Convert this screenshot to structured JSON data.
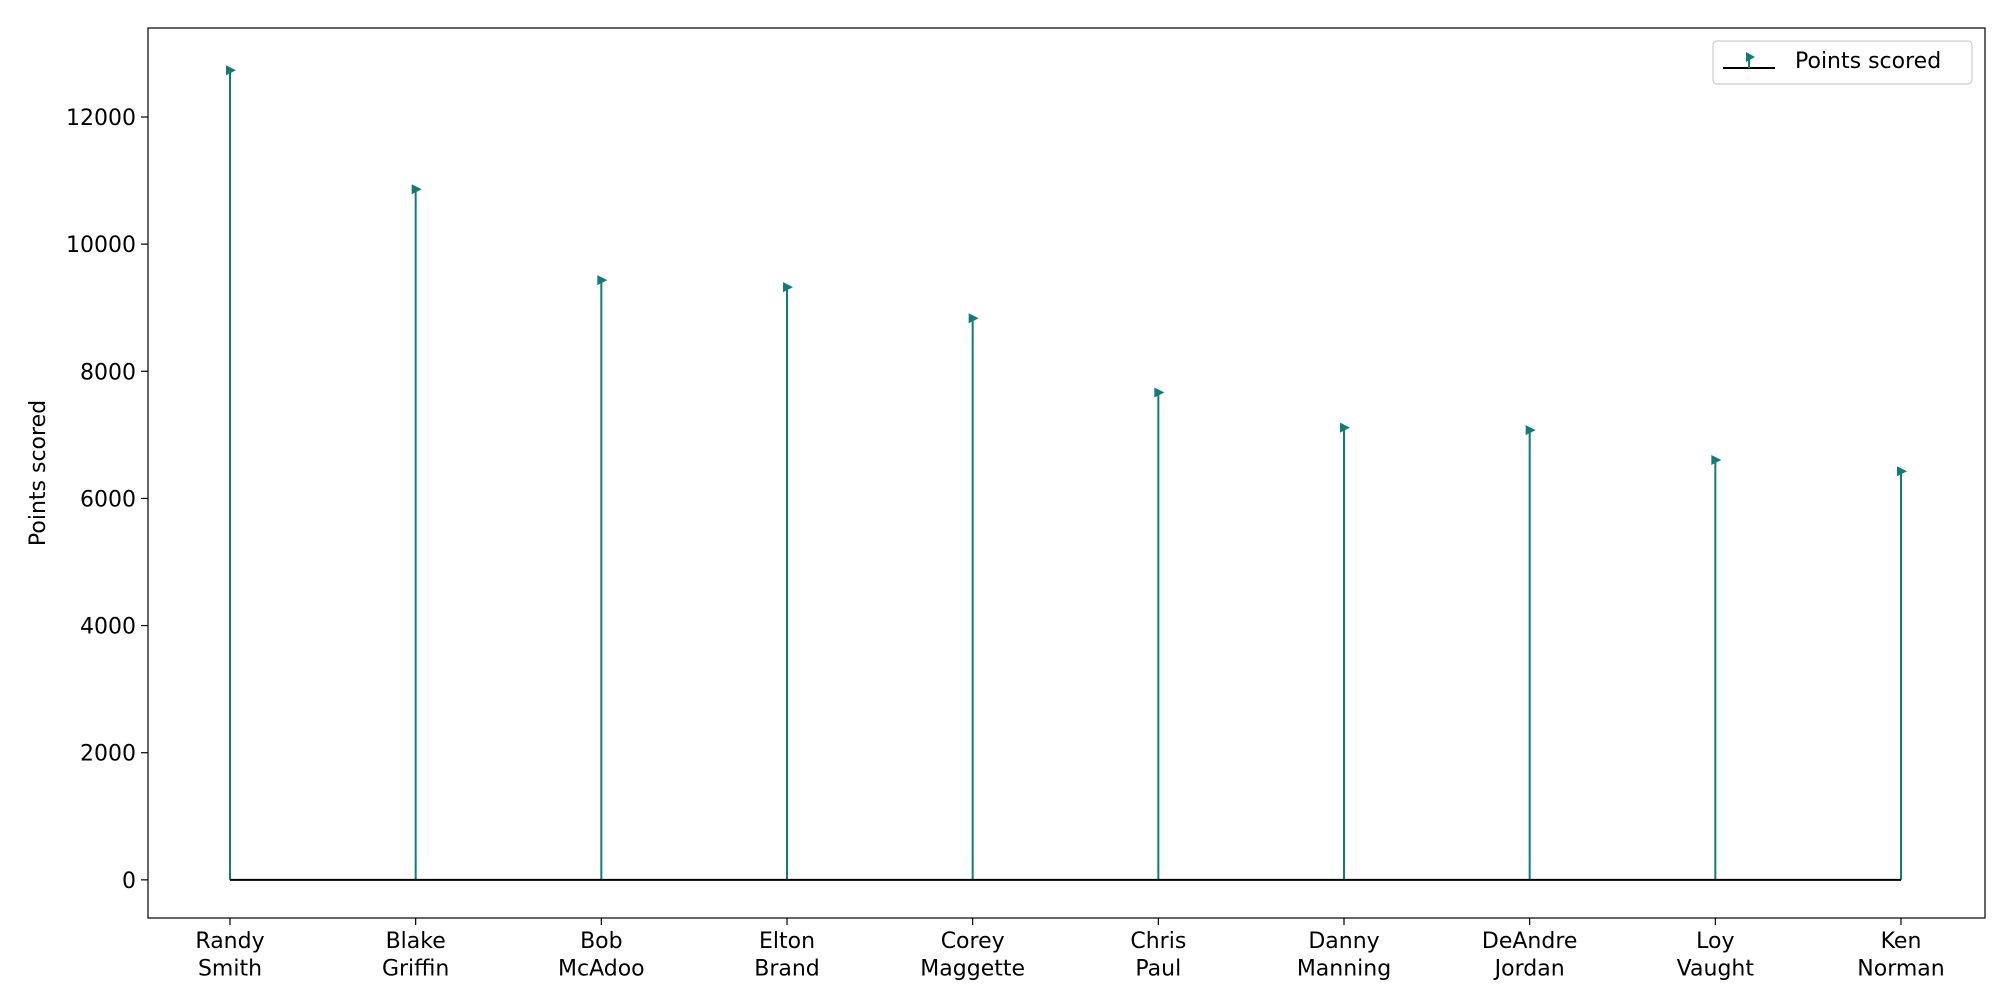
{
  "chart_data": {
    "type": "stem",
    "title": "",
    "xlabel": "",
    "ylabel": "Points scored",
    "categories": [
      [
        "Randy",
        "Smith"
      ],
      [
        "Blake",
        "Griffin"
      ],
      [
        "Bob",
        "McAdoo"
      ],
      [
        "Elton",
        "Brand"
      ],
      [
        "Corey",
        "Maggette"
      ],
      [
        "Chris",
        "Paul"
      ],
      [
        "Danny",
        "Manning"
      ],
      [
        "DeAndre",
        "Jordan"
      ],
      [
        "Loy",
        "Vaught"
      ],
      [
        "Ken",
        "Norman"
      ]
    ],
    "series": [
      {
        "name": "Points scored",
        "values": [
          12735,
          10863,
          9434,
          9324,
          8835,
          7666,
          7113,
          7074,
          6604,
          6427
        ]
      }
    ],
    "ylim": [
      -600,
      13400
    ],
    "yticks": [
      0,
      2000,
      4000,
      6000,
      8000,
      10000,
      12000
    ],
    "grid": false,
    "legend_position": "top-right",
    "colors": {
      "stem": "#0f7c7c",
      "baseline": "#000000",
      "axis": "#000000"
    },
    "marker": "triangle-right"
  }
}
